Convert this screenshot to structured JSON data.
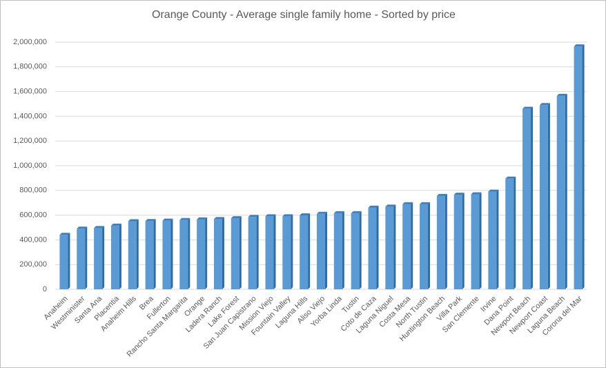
{
  "chart_data": {
    "type": "bar",
    "title": "Orange County - Average single family home - Sorted by price",
    "categories": [
      "Anaheim",
      "Westminister",
      "Santa Ana",
      "Placentia",
      "Anaheim Hills",
      "Brea",
      "Fullerton",
      "Rancho Santa Margarita",
      "Orange",
      "Ladera Ranch",
      "Lake Forest",
      "San Juan Capistrano",
      "Mission Viejo",
      "Fountain Valley",
      "Laguna Hills",
      "Aliso Viejo",
      "Yorba Linda",
      "Tustin",
      "Coto de Caza",
      "Laguna Niguel",
      "Costa Mesa",
      "North Tustin",
      "Huntington Beach",
      "Villa Park",
      "San Clemente",
      "Irvine",
      "Dana Point",
      "Newport Beach",
      "Newport Coast",
      "Laguna Beach",
      "Corona del Mar"
    ],
    "values": [
      440000,
      490000,
      495000,
      515000,
      550000,
      552000,
      555000,
      560000,
      565000,
      568000,
      575000,
      585000,
      590000,
      590000,
      598000,
      610000,
      615000,
      615000,
      660000,
      668000,
      688000,
      688000,
      755000,
      765000,
      768000,
      790000,
      895000,
      1460000,
      1490000,
      1565000,
      1965000
    ],
    "color": "#5b9bd5",
    "ylim": [
      0,
      2000000
    ],
    "yticks": [
      0,
      {
        "value": 200000,
        "label": "200,000"
      },
      {
        "value": 400000,
        "label": "400,000"
      },
      {
        "value": 600000,
        "label": "600,000"
      },
      {
        "value": 800000,
        "label": "800,000"
      },
      {
        "value": 1000000,
        "label": "1,000,000"
      },
      {
        "value": 1200000,
        "label": "1,200,000"
      },
      {
        "value": 1400000,
        "label": "1,400,000"
      },
      {
        "value": 1600000,
        "label": "1,600,000"
      },
      {
        "value": 1800000,
        "label": "1,800,000"
      },
      {
        "value": 2000000,
        "label": "2,000,000"
      }
    ],
    "grid": true
  }
}
